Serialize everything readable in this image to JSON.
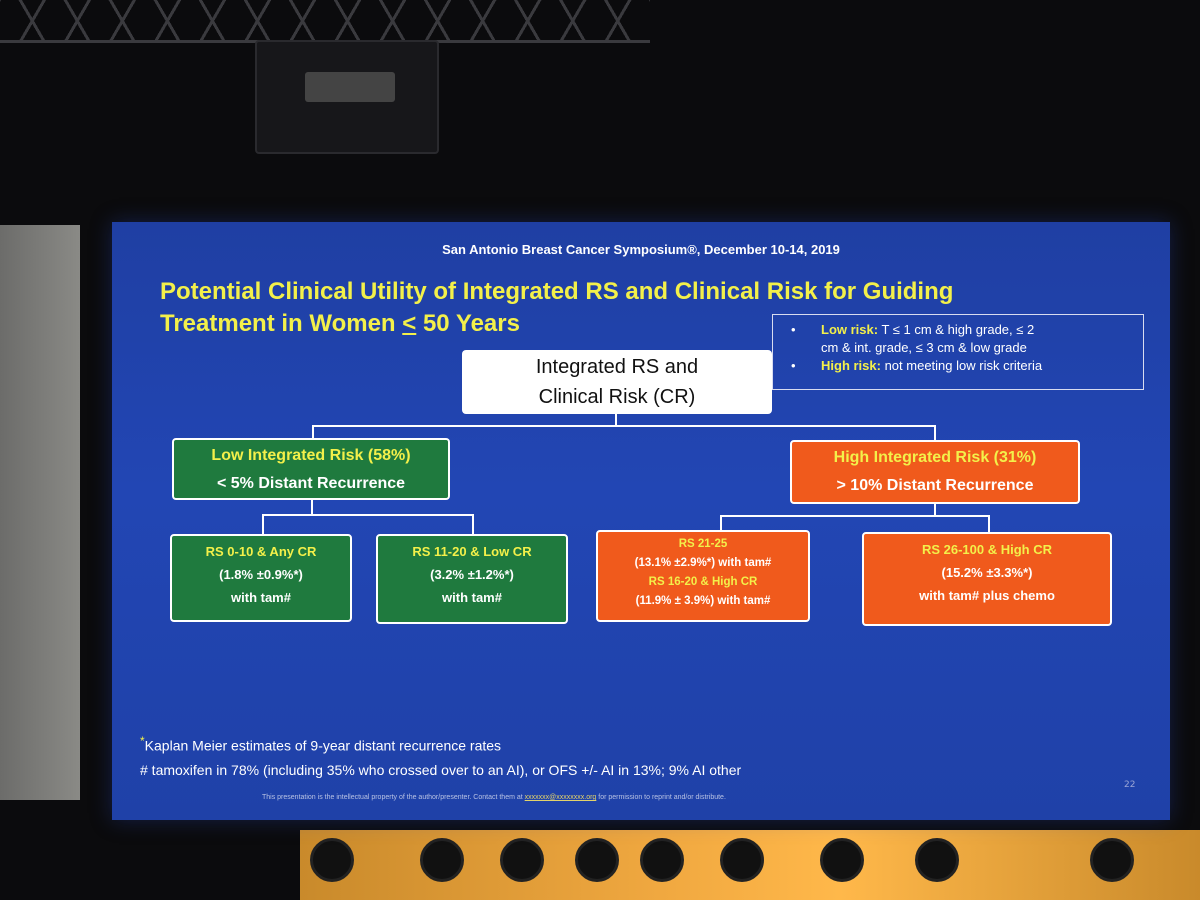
{
  "slide": {
    "header": "San Antonio Breast Cancer Symposium®, December 10-14, 2019",
    "title_line1": "Potential Clinical Utility of Integrated RS and Clinical Risk for Guiding",
    "title_line2_a": "Treatment in Women ",
    "title_line2_le": "<",
    "title_line2_b": " 50 Years",
    "criteria": {
      "low_label": "Low risk:",
      "low_text_1": " T ≤ 1 cm  & high grade, ≤ 2",
      "low_text_2": "cm & int. grade, ≤ 3 cm & low grade",
      "high_label": "High risk:",
      "high_text": " not meeting low risk criteria",
      "bullet": "•"
    },
    "root": {
      "line1": "Integrated RS and",
      "line2": "Clinical Risk (CR)"
    },
    "low_branch": {
      "title": "Low Integrated Risk (58%)",
      "subtitle": "< 5% Distant Recurrence",
      "child1": {
        "line1": "RS 0-10 & Any CR",
        "line2": "(1.8% ±0.9%*)",
        "line3": "with tam#"
      },
      "child2": {
        "line1": "RS 11-20 & Low CR",
        "line2": "(3.2% ±1.2%*)",
        "line3": "with tam#"
      }
    },
    "high_branch": {
      "title": "High Integrated Risk (31%)",
      "subtitle": "> 10% Distant Recurrence",
      "child1": {
        "line1": "RS 21-25",
        "line2": "(13.1% ±2.9%*) with tam#",
        "line3": "RS 16-20 & High  CR",
        "line4": "(11.9% ± 3.9%) with tam#"
      },
      "child2": {
        "line1": "RS 26-100 & High CR",
        "line2": "(15.2% ±3.3%*)",
        "line3": "with tam# plus chemo"
      }
    },
    "footnote_star": "*",
    "footnote1": "Kaplan Meier estimates of 9-year distant recurrence rates",
    "footnote2": "# tamoxifen in 78% (including 35% who crossed over to an AI), or OFS +/- AI in 13%; 9% AI other",
    "ip_a": "This presentation is the intellectual property of the author/presenter. Contact them at ",
    "ip_email": "xxxxxxx@xxxxxxxx.org",
    "ip_b": " for permission to reprint and/or distribute.",
    "page_number": "22"
  },
  "colors": {
    "slide_blue": "#2246b4",
    "title_yellow": "#f3f04a",
    "low_green": "#1f7a3e",
    "high_orange": "#f05a1c"
  }
}
